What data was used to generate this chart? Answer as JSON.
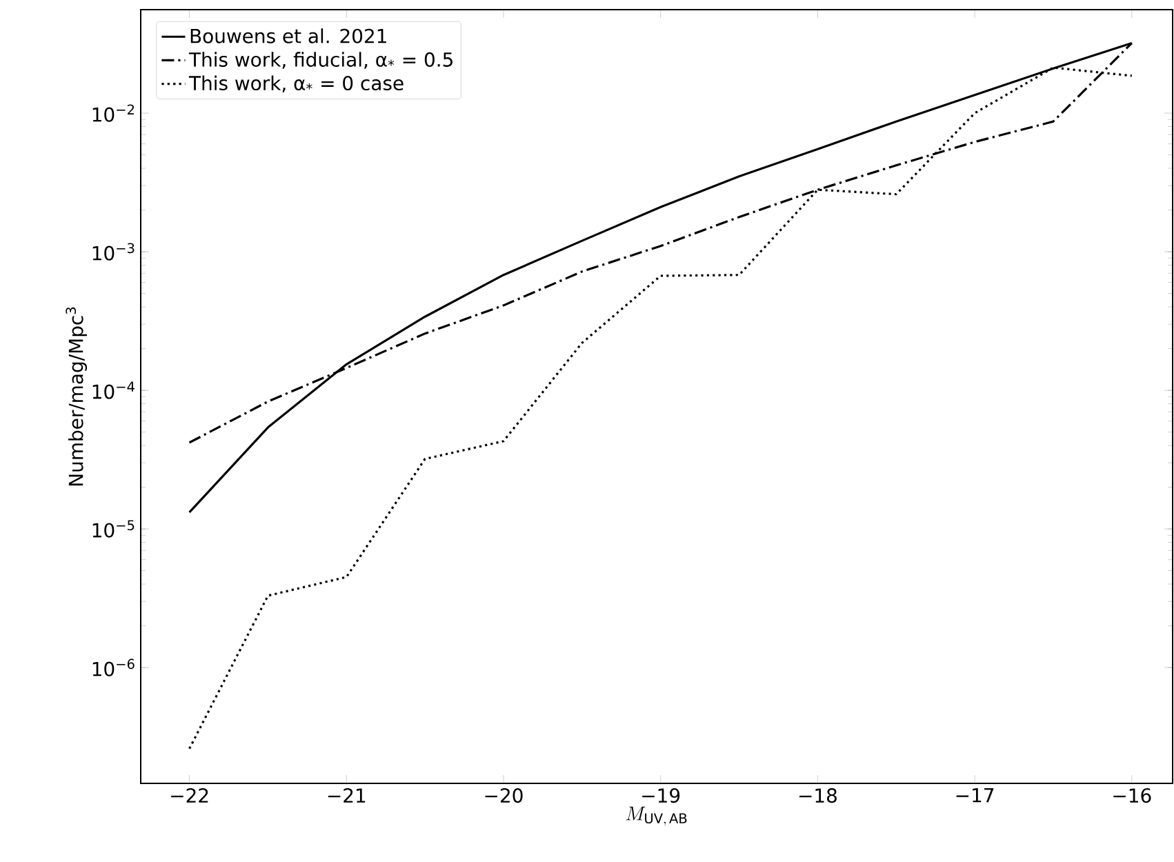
{
  "chart_data": {
    "type": "line",
    "xlabel": "M_{\\mathrm{UV,\\,AB}}",
    "ylabel": "Number/mag/Mpc$^{3}$",
    "x": [
      -22,
      -21.5,
      -21,
      -20.5,
      -20,
      -19.5,
      -19,
      -18.5,
      -18,
      -17.5,
      -17,
      -16.5,
      -16
    ],
    "series": [
      {
        "name": "Bouwens et al. 2021",
        "color": "#000000",
        "line_style": "solid",
        "values": [
          1.32e-05,
          5.4e-05,
          0.000154,
          0.00034,
          0.00068,
          0.0012,
          0.0021,
          0.0035,
          0.0055,
          0.0087,
          0.0135,
          0.021,
          0.032
        ]
      },
      {
        "name": "This work, fiducial, α$_{*}$ = 0.5",
        "color": "#000000",
        "line_style": "dashdot",
        "values": [
          4.2e-05,
          8.3e-05,
          0.000145,
          0.000257,
          0.00041,
          0.00072,
          0.0011,
          0.00178,
          0.0028,
          0.0042,
          0.0062,
          0.0087,
          0.032
        ]
      },
      {
        "name": "This work, α$_{*}$ = 0 case",
        "color": "#000000",
        "line_style": "dotted",
        "values": [
          2.6e-07,
          3.3e-06,
          4.5e-06,
          3.2e-05,
          4.3e-05,
          0.00022,
          0.00067,
          0.00068,
          0.0028,
          0.0026,
          0.01,
          0.0213,
          0.0186
        ]
      }
    ],
    "log": "y",
    "legend": "top left",
    "marker": "none",
    "xlim": [
      -22.31,
      -15.74
    ],
    "ylim": [
      1.46e-07,
      0.0558
    ],
    "xticks": [
      {
        "value": -22,
        "label": "−22"
      },
      {
        "value": -21,
        "label": "−21"
      },
      {
        "value": -20,
        "label": "−20"
      },
      {
        "value": -19,
        "label": "−19"
      },
      {
        "value": -18,
        "label": "−18"
      },
      {
        "value": -17,
        "label": "−17"
      },
      {
        "value": -16,
        "label": "−16"
      }
    ],
    "yticks": [
      {
        "value": 1e-06,
        "label": "10$^{−6}$"
      },
      {
        "value": 1e-05,
        "label": "10$^{−5}$"
      },
      {
        "value": 0.0001,
        "label": "10$^{−4}$"
      },
      {
        "value": 0.001,
        "label": "10$^{−3}$"
      },
      {
        "value": 0.01,
        "label": "10$^{−2}$"
      }
    ]
  }
}
